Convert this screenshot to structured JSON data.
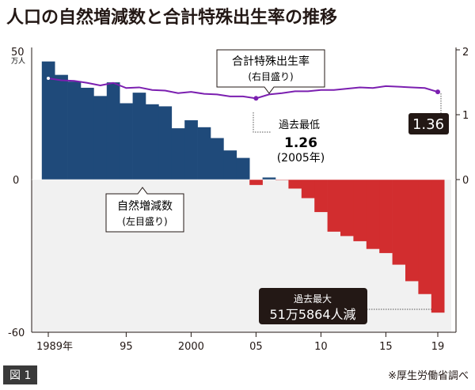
{
  "title": "人口の自然増減数と合計特殊出生率の推移",
  "figure_label": "図 1",
  "source": "※厚生労働省調べ",
  "colors": {
    "positive": "#1f4a7a",
    "negative": "#d22d2f",
    "line": "#7b1fb0",
    "shade": "#f1f1f1",
    "dark": "#231815"
  },
  "chart_data": {
    "type": "bar+line",
    "title": "人口の自然増減数と合計特殊出生率の推移",
    "x": [
      1989,
      1990,
      1991,
      1992,
      1993,
      1994,
      1995,
      1996,
      1997,
      1998,
      1999,
      2000,
      2001,
      2002,
      2003,
      2004,
      2005,
      2006,
      2007,
      2008,
      2009,
      2010,
      2011,
      2012,
      2013,
      2014,
      2015,
      2016,
      2017,
      2018,
      2019
    ],
    "x_tick_labels": [
      {
        "year": 1989,
        "label": "1989年"
      },
      {
        "year": 1995,
        "label": "95"
      },
      {
        "year": 2000,
        "label": "2000"
      },
      {
        "year": 2005,
        "label": "05"
      },
      {
        "year": 2010,
        "label": "10"
      },
      {
        "year": 2015,
        "label": "15"
      },
      {
        "year": 2019,
        "label": "19"
      }
    ],
    "series": [
      {
        "name": "自然増減数",
        "axis": "left",
        "unit": "万人",
        "type": "bar",
        "values": [
          45.8,
          40.6,
          38.0,
          35.6,
          32.4,
          37.7,
          29.6,
          33.7,
          29.2,
          28.4,
          19.9,
          23.0,
          20.3,
          16.1,
          11.3,
          8.4,
          -2.1,
          0.8,
          -0.2,
          -3.5,
          -7.2,
          -12.6,
          -20.2,
          -21.9,
          -23.9,
          -26.9,
          -28.5,
          -33.0,
          -39.4,
          -44.4,
          -51.6
        ]
      },
      {
        "name": "合計特殊出生率",
        "axis": "right",
        "type": "line",
        "values": [
          1.57,
          1.54,
          1.53,
          1.5,
          1.46,
          1.5,
          1.42,
          1.43,
          1.39,
          1.38,
          1.34,
          1.36,
          1.33,
          1.32,
          1.29,
          1.29,
          1.26,
          1.32,
          1.34,
          1.37,
          1.37,
          1.39,
          1.39,
          1.41,
          1.43,
          1.42,
          1.45,
          1.44,
          1.43,
          1.42,
          1.36
        ]
      }
    ],
    "left_axis": {
      "ylim": [
        -60,
        50
      ],
      "ticks": [
        "50",
        "0",
        "-60"
      ],
      "unit": "万人"
    },
    "right_axis": {
      "ylim": [
        0,
        2
      ],
      "ticks": [
        "2",
        "1",
        "0"
      ]
    },
    "annotations": {
      "line_label": "合計特殊出生率",
      "line_label_sub": "(右目盛り)",
      "bar_label": "自然増減数",
      "bar_label_sub": "(左目盛り)",
      "min_title": "過去最低",
      "min_value": "1.26",
      "min_year": "(2005年)",
      "last_value": "1.36",
      "max_title": "過去最大",
      "max_value": "51万5864人減"
    }
  }
}
